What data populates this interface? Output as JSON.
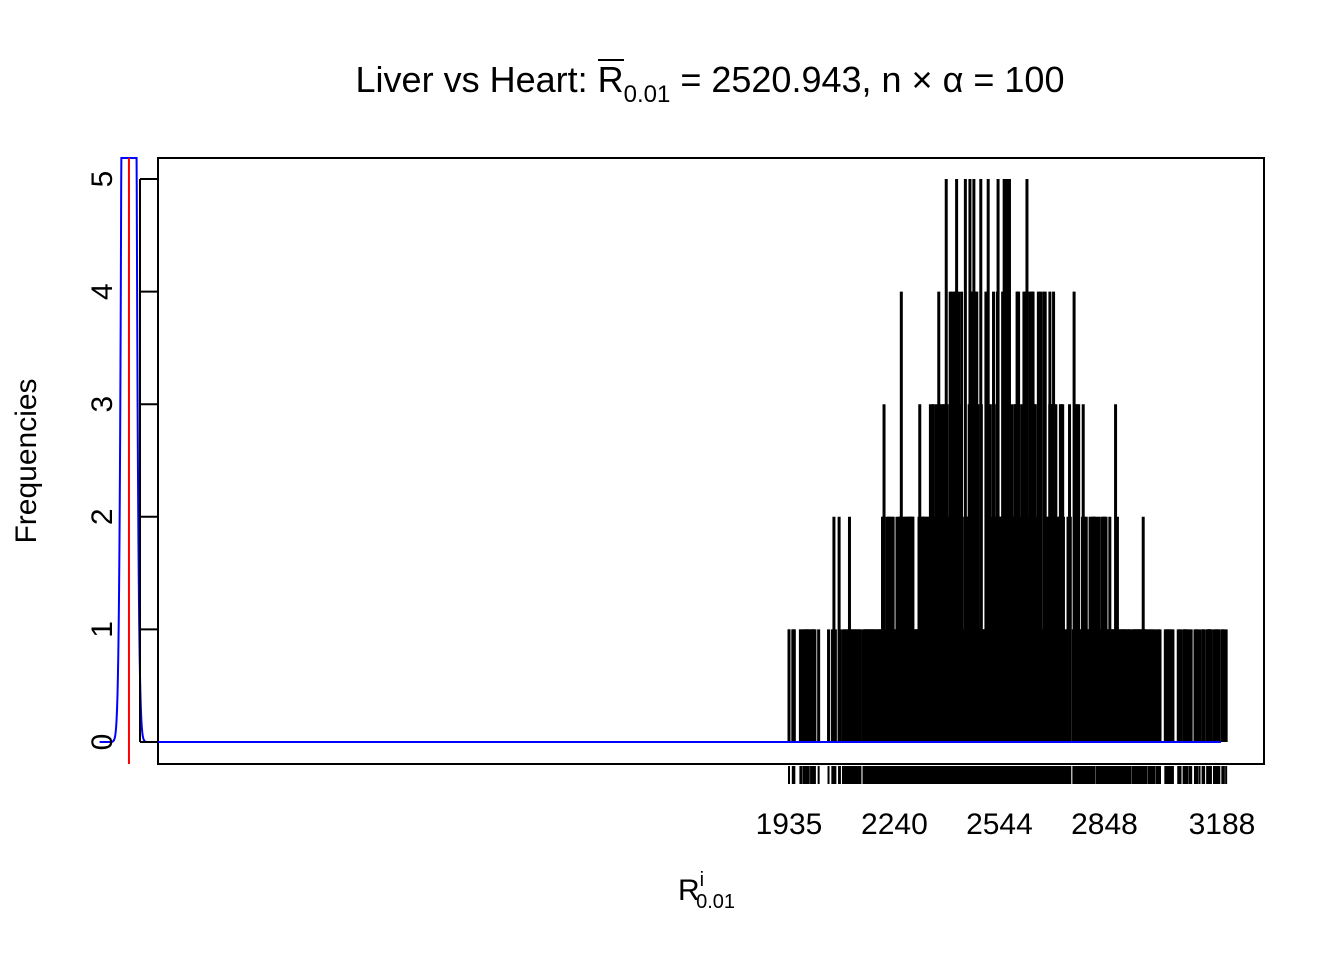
{
  "title": {
    "prefix": "Liver vs Heart: ",
    "rbar_symbol": "R",
    "rbar_sub": "0.01",
    "rbar_value": " = 2520.943, ",
    "n_alpha": "n × α = 100"
  },
  "xlabel": {
    "main": "R",
    "sup": "i",
    "sub": "0.01"
  },
  "ylabel": "Frequencies",
  "colors": {
    "bars": "#000000",
    "density": "#0000ff",
    "vline": "#ff0000",
    "axis": "#000000"
  },
  "chart_data": {
    "type": "bar",
    "description_kind": "frequency spikes (histogram of permutation values) with density curve and observed-value line",
    "xlim": [
      -100,
      3210
    ],
    "ylim": [
      0,
      5
    ],
    "x_ticks": [
      1935,
      2240,
      2544,
      2848,
      3188
    ],
    "y_ticks": [
      0,
      1,
      2,
      3,
      4,
      5
    ],
    "grid": false,
    "legend": "none",
    "observed_line_x": 25,
    "density_peak_x": 25,
    "density_spread": 11,
    "frequency_range": {
      "min_x": 1935,
      "max_x": 3200,
      "mode_x": 2540,
      "max_freq": 5
    },
    "selected_spikes": [
      {
        "x": 1935,
        "y": 1
      },
      {
        "x": 1980,
        "y": 1
      },
      {
        "x": 1990,
        "y": 1
      },
      {
        "x": 2010,
        "y": 1
      },
      {
        "x": 2065,
        "y": 2
      },
      {
        "x": 2080,
        "y": 2
      },
      {
        "x": 2110,
        "y": 2
      },
      {
        "x": 2210,
        "y": 3
      },
      {
        "x": 2260,
        "y": 4
      },
      {
        "x": 2390,
        "y": 5
      },
      {
        "x": 2420,
        "y": 5
      },
      {
        "x": 2470,
        "y": 5
      },
      {
        "x": 2490,
        "y": 5
      },
      {
        "x": 2540,
        "y": 5
      },
      {
        "x": 2560,
        "y": 5
      },
      {
        "x": 2690,
        "y": 4
      },
      {
        "x": 2760,
        "y": 4
      },
      {
        "x": 2880,
        "y": 3
      },
      {
        "x": 2960,
        "y": 2
      },
      {
        "x": 3080,
        "y": 1
      },
      {
        "x": 3150,
        "y": 1
      },
      {
        "x": 3190,
        "y": 1
      },
      {
        "x": 3200,
        "y": 1
      }
    ]
  }
}
